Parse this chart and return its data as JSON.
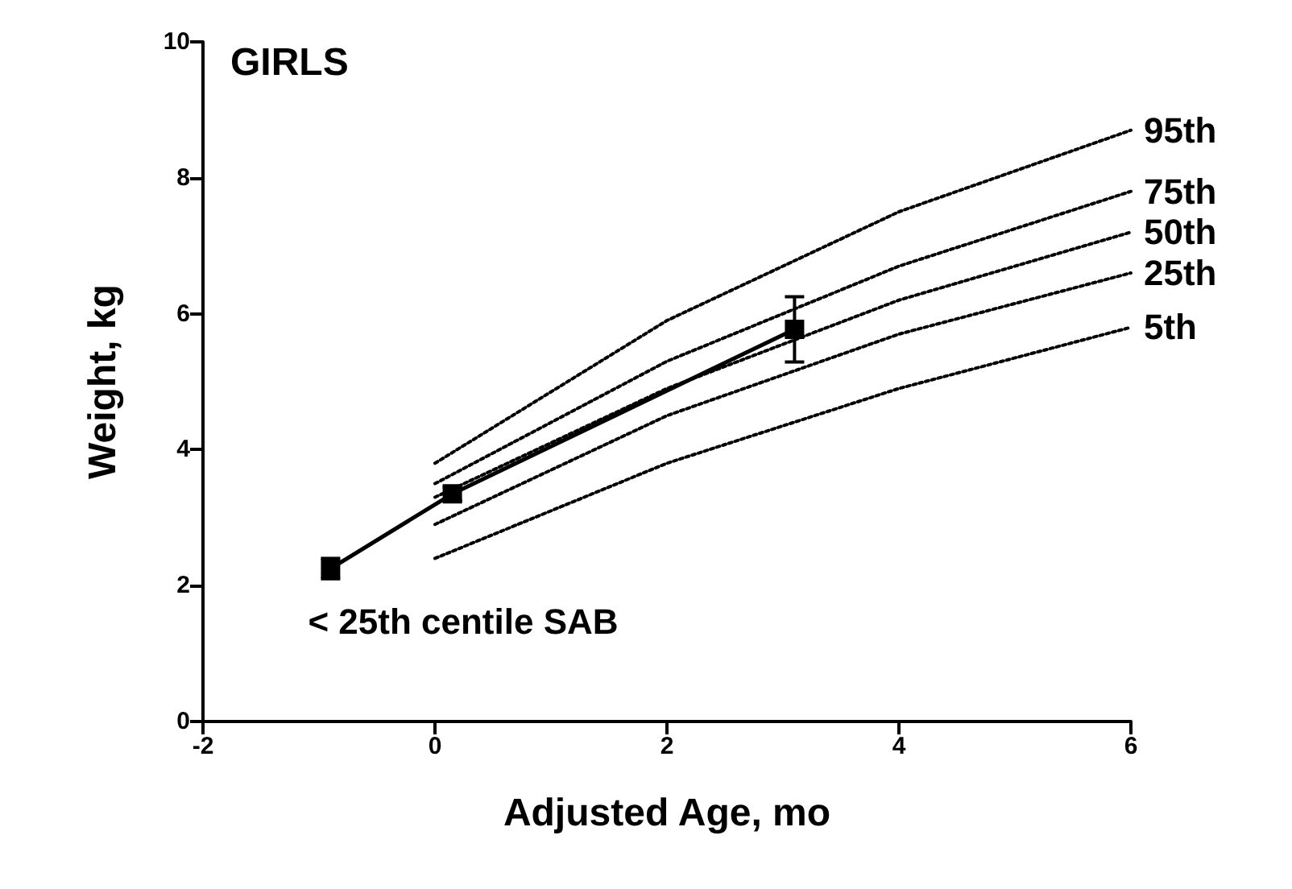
{
  "chart_data": {
    "type": "line",
    "title": "GIRLS",
    "xlabel": "Adjusted Age, mo",
    "ylabel": "Weight, kg",
    "xlim": [
      -2,
      6
    ],
    "xticks": [
      -2,
      0,
      2,
      4,
      6
    ],
    "ylim": [
      0,
      10
    ],
    "yticks": [
      0,
      2,
      4,
      6,
      8,
      10
    ],
    "grid": false,
    "legend": false,
    "annotations": [
      {
        "text": "< 25th centile SAB",
        "x": -0.9,
        "y": 2.25
      }
    ],
    "series": [
      {
        "name": "95th",
        "color": "#000000",
        "x": [
          0,
          2,
          4,
          6
        ],
        "values": [
          3.8,
          5.9,
          7.5,
          8.7
        ],
        "line_style": "dotted",
        "marker": "none"
      },
      {
        "name": "75th",
        "color": "#000000",
        "x": [
          0,
          2,
          4,
          6
        ],
        "values": [
          3.5,
          5.3,
          6.7,
          7.8
        ],
        "line_style": "dotted",
        "marker": "none"
      },
      {
        "name": "50th",
        "color": "#000000",
        "x": [
          0,
          2,
          4,
          6
        ],
        "values": [
          3.3,
          4.9,
          6.2,
          7.2
        ],
        "line_style": "dotted",
        "marker": "none"
      },
      {
        "name": "25th",
        "color": "#000000",
        "x": [
          0,
          2,
          4,
          6
        ],
        "values": [
          2.9,
          4.5,
          5.7,
          6.6
        ],
        "line_style": "dotted",
        "marker": "none"
      },
      {
        "name": "5th",
        "color": "#000000",
        "x": [
          0,
          2,
          4,
          6
        ],
        "values": [
          2.4,
          3.8,
          4.9,
          5.8
        ],
        "line_style": "dotted",
        "marker": "none"
      },
      {
        "color": "#000000",
        "x": [
          -0.9,
          0.15,
          3.1
        ],
        "values": [
          2.25,
          3.35,
          5.77
        ],
        "errors": [
          0.15,
          0.1,
          0.48
        ],
        "line_style": "solid",
        "marker": "square"
      }
    ]
  }
}
